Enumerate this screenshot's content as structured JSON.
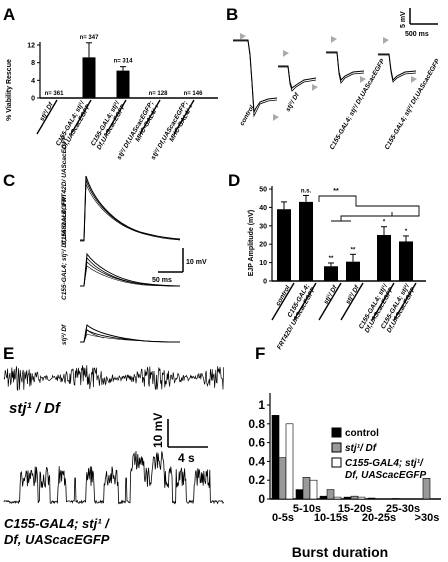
{
  "panels": {
    "A": {
      "letter": "A",
      "ylabel": "% Viability Rescue",
      "yticks": [
        "0",
        "4",
        "8",
        "12"
      ],
      "chart_data": {
        "type": "bar",
        "categories": [
          "stj²/ Df",
          "C155-GAL4; stj¹/ Df,UAScacEGFP",
          "C155-GAL4; stj²/ Df,UAScacEGFP",
          "stj²/ Df,UAScacEGFP; MHC-GAL4/ +",
          "stj²/ Df,UAScacEGFP; MHC-GAL4/ +"
        ],
        "values": [
          0,
          9.2,
          6.2,
          0,
          0
        ],
        "errors": [
          0,
          3.3,
          0.9,
          0,
          0
        ],
        "n_labels": [
          "n= 361",
          "n= 347",
          "n= 314",
          "n= 128",
          "n= 146"
        ],
        "ylim": [
          0,
          12
        ]
      }
    },
    "B": {
      "letter": "B",
      "scale_v": "5 mV",
      "scale_t": "500 ms",
      "labels": [
        "control",
        "stj²/ Df",
        "C155-GAL4; stj¹/ Df,UAScacEGFP",
        "C155-GAL4; stj²/ Df,UAScacEGFP"
      ]
    },
    "C": {
      "letter": "C",
      "scale_v": "10 mV",
      "scale_t": "50 ms",
      "labels": [
        "C155-GAL4; FRT42D/ UAScacEGFP",
        "C155-GAL4; stj¹/ Df,UAScacEGFP",
        "stj²/ Df"
      ]
    },
    "D": {
      "letter": "D",
      "ylabel": "EJP Amplitude (mV)",
      "yticks": [
        "0",
        "10",
        "20",
        "30",
        "40",
        "50"
      ],
      "chart_data": {
        "type": "bar",
        "categories": [
          "control",
          "C155-GAL4; FRT42D/ UAScacEGFP",
          "stj¹/ Df",
          "stj²/ Df",
          "C155-GAL4; stj¹/ Df,UAScacEGFP",
          "C155-GAL4; stj²/ Df,UAScacEGFP"
        ],
        "values": [
          39,
          43,
          8,
          10.5,
          25,
          21.5
        ],
        "errors": [
          4,
          3.5,
          1.8,
          4,
          4.5,
          3
        ],
        "stars": [
          "",
          "n.s.",
          "**",
          "**",
          "*",
          "*"
        ],
        "bracket_label": "**",
        "ylim": [
          0,
          50
        ]
      }
    },
    "E": {
      "letter": "E",
      "label_top": "stj¹ / Df",
      "label_bottom": "C155-GAL4; stj¹ / Df, UAScacEGFP",
      "scale_v": "10 mV",
      "scale_t": "4 s"
    },
    "F": {
      "letter": "F",
      "xlabel": "Burst duration",
      "yticks": [
        "0",
        "0.2",
        "0.4",
        "0.6",
        "0.8",
        "1"
      ],
      "legend": [
        "control",
        "stj¹/ Df",
        "C155-GAL4; stj¹/ Df, UAScacEGFP"
      ],
      "chart_data": {
        "type": "bar",
        "categories": [
          "0-5s",
          "5-10s",
          "10-15s",
          "15-20s",
          "20-25s",
          "25-30s",
          ">30s"
        ],
        "series": [
          {
            "name": "control",
            "color": "#000000",
            "values": [
              0.89,
              0.1,
              0.03,
              0.02,
              0.01,
              0.005,
              0
            ]
          },
          {
            "name": "stj¹/ Df",
            "color": "#999999",
            "values": [
              0.44,
              0.23,
              0.1,
              0.03,
              0,
              0,
              0.22
            ]
          },
          {
            "name": "C155-GAL4; stj¹/ Df, UAScacEGFP",
            "color": "#ffffff",
            "values": [
              0.8,
              0.2,
              0.02,
              0.02,
              0,
              0,
              0
            ]
          }
        ],
        "ylim": [
          0,
          1
        ]
      }
    }
  }
}
